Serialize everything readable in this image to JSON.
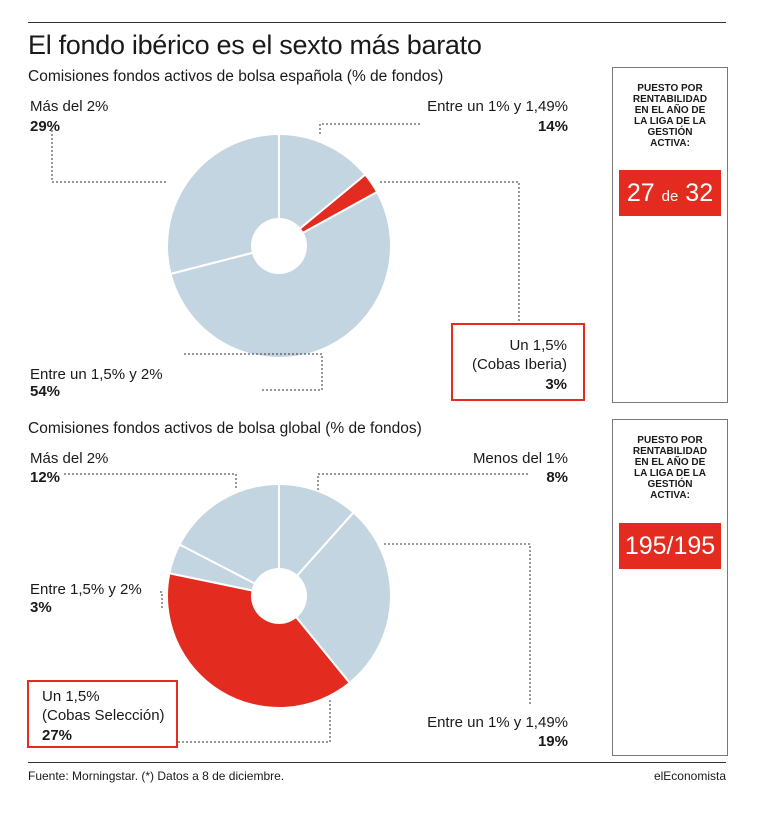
{
  "title": "El fondo ibérico es el sexto más barato",
  "colors": {
    "base": "#c3d5e0",
    "highlight": "#e32b20",
    "people": "#b9d0de"
  },
  "chart_data": [
    {
      "type": "pie",
      "title": "Comisiones fondos activos de bolsa española (% de fondos)",
      "slices": [
        {
          "label": "Entre un 1% y 1,49%",
          "value": 14,
          "display": "14%"
        },
        {
          "label": "Un 1,5% (Cobas Iberia)",
          "label_lines": [
            "Un 1,5%",
            "(Cobas Iberia)"
          ],
          "value": 3,
          "display": "3%",
          "highlight": true
        },
        {
          "label": "Entre un 1,5% y 2%",
          "value": 54,
          "display": "54%"
        },
        {
          "label": "Más del 2%",
          "value": 29,
          "display": "29%"
        }
      ]
    },
    {
      "type": "pie",
      "title": "Comisiones fondos activos de bolsa global (% de fondos)",
      "slices": [
        {
          "label": "Menos del 1%",
          "value": 8,
          "display": "8%"
        },
        {
          "label": "Entre un 1% y 1,49%",
          "value": 19,
          "display": "19%"
        },
        {
          "label": "Un 1,5% (Cobas Selección)",
          "label_lines": [
            "Un 1,5%",
            "(Cobas Selección)"
          ],
          "value": 27,
          "display": "27%",
          "highlight": true
        },
        {
          "label": "Entre 1,5% y 2%",
          "value": 3,
          "display": "3%"
        },
        {
          "label": "Más del 2%",
          "value": 12,
          "display": "12%"
        }
      ]
    }
  ],
  "panels": [
    {
      "heading": [
        "PUESTO POR",
        "RENTABILIDAD",
        "EN EL AÑO DE",
        "LA LIGA DE LA",
        "GESTIÓN",
        "ACTIVA:"
      ],
      "rank": "27",
      "rank_sep": "de",
      "rank_total": "32"
    },
    {
      "heading": [
        "PUESTO POR",
        "RENTABILIDAD",
        "EN EL AÑO DE",
        "LA LIGA DE LA",
        "GESTIÓN",
        "ACTIVA:"
      ],
      "rank_text": "195/195"
    }
  ],
  "footer": {
    "source": "Fuente: Morningstar. (*) Datos a 8 de diciembre.",
    "brand": "elEconomista"
  }
}
